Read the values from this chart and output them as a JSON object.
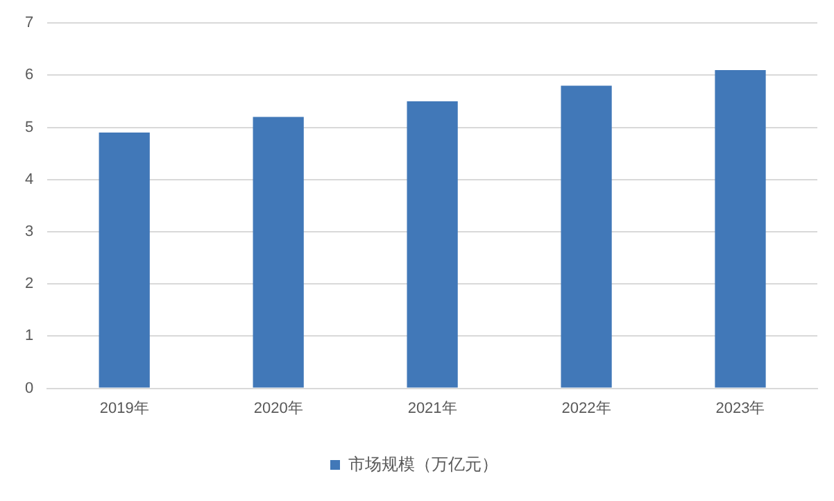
{
  "chart_data": {
    "type": "bar",
    "categories": [
      "2019年",
      "2020年",
      "2021年",
      "2022年",
      "2023年"
    ],
    "series": [
      {
        "name": "市场规模（万亿元）",
        "color": "#4178b8",
        "values": [
          4.9,
          5.2,
          5.5,
          5.8,
          6.1
        ]
      }
    ],
    "ylim": [
      0,
      7
    ],
    "yticks": [
      0,
      1,
      2,
      3,
      4,
      5,
      6,
      7
    ],
    "grid": "y",
    "legend": "bottom"
  }
}
